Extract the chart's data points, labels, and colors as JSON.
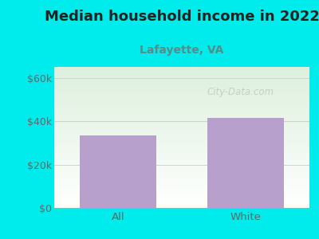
{
  "title": "Median household income in 2022",
  "subtitle": "Lafayette, VA",
  "categories": [
    "All",
    "White"
  ],
  "values": [
    33500,
    41500
  ],
  "bar_color": "#b8a0cc",
  "background_color": "#00ecec",
  "plot_bg_top_left": "#ddf0dd",
  "plot_bg_bottom": "#ffffff",
  "title_color": "#222222",
  "subtitle_color": "#5b8a8a",
  "tick_color": "#666666",
  "ylim": [
    0,
    65000
  ],
  "yticks": [
    0,
    20000,
    40000,
    60000
  ],
  "ytick_labels": [
    "$0",
    "$20k",
    "$40k",
    "$60k"
  ],
  "watermark": "City-Data.com",
  "watermark_color": "#c0c8c8",
  "title_fontsize": 13,
  "subtitle_fontsize": 10
}
